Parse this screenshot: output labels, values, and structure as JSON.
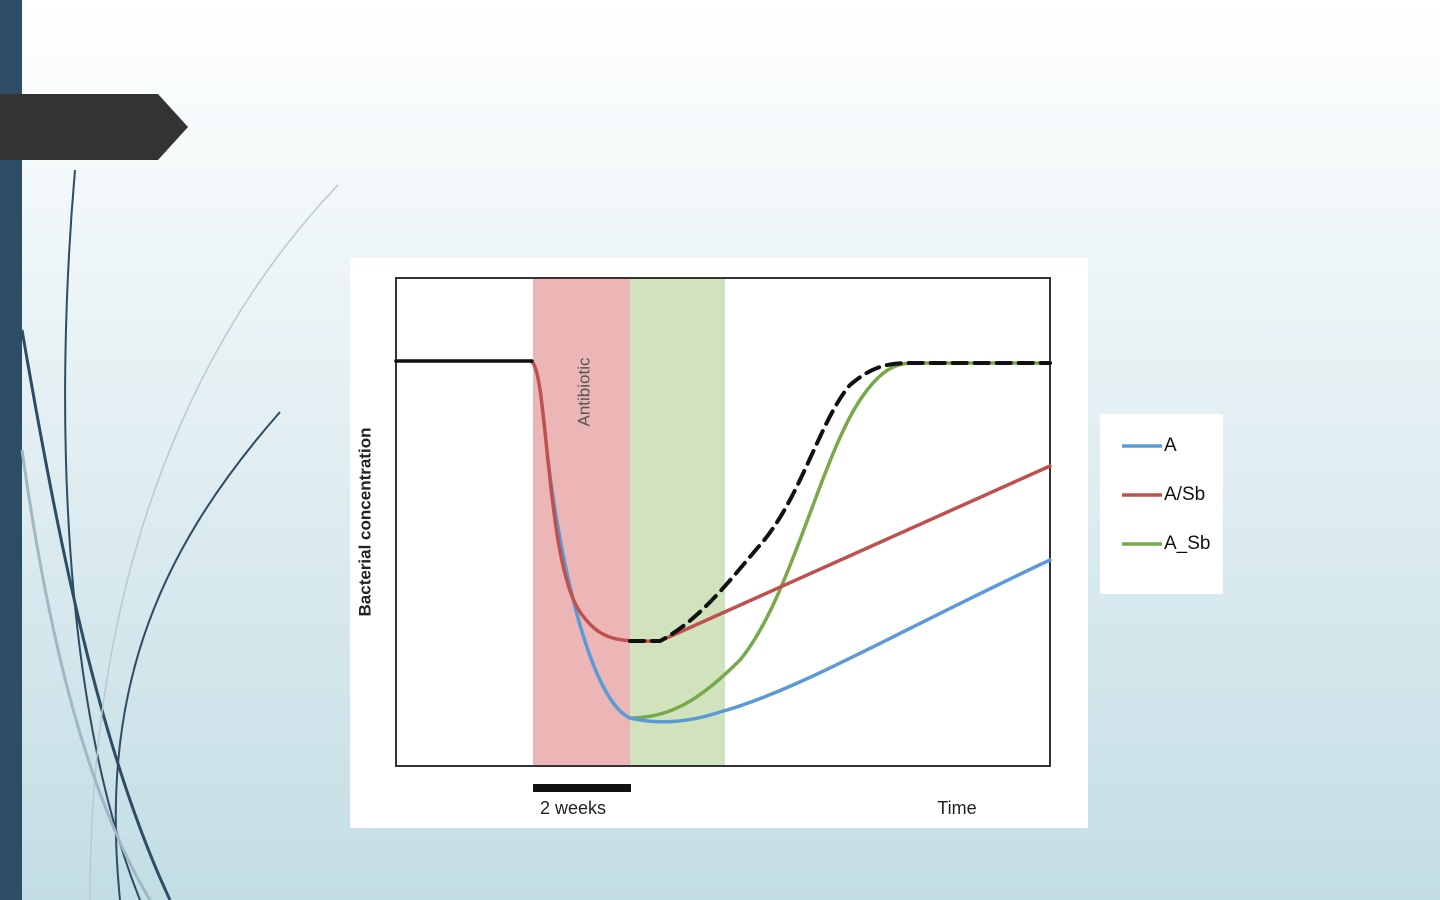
{
  "slide": {
    "chart": {
      "antibiotic_label": "Antibiotic",
      "y_axis_label": "Bacterial concentration",
      "x_axis_label": "Time",
      "scale_bar_label": "2 weeks",
      "legend": [
        {
          "name": "A",
          "color": "#5b9bd5"
        },
        {
          "name": "A/Sb",
          "color": "#c0504d"
        },
        {
          "name": "A_Sb",
          "color": "#77a94b"
        }
      ]
    }
  }
}
